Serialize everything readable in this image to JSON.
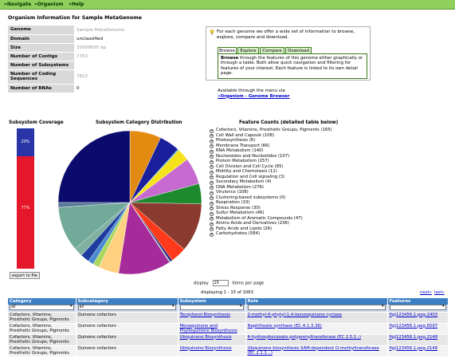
{
  "menu": [
    "»Navigate",
    "»Organism",
    "»Help"
  ],
  "page_title": "Organism Information for Sample MetaGenome",
  "info_table": [
    {
      "label": "Genome",
      "value": "Sample MetaGenome"
    },
    {
      "label": "Domain",
      "value": "unclassified"
    },
    {
      "label": "Size",
      "value": "20008695 bp"
    },
    {
      "label": "Number of Contigs",
      "value": "7763"
    },
    {
      "label": "Number of Subsystems",
      "value": ""
    },
    {
      "label": "Number of Coding Sequences",
      "value": "7822"
    },
    {
      "label": "Number of RNAs",
      "value": "0"
    }
  ],
  "info_box": {
    "intro": "For each genome we offer a wide set of information to browse, explore, compare and download.",
    "tabs": [
      "Browse",
      "Explore",
      "Compare",
      "Download"
    ],
    "active_tab": "Browse",
    "panel_bold": "Browse",
    "panel_text": " through the features of this genome either graphically or through a table. Both allow quick navigation and filtering for features of your interest. Each feature is linked to its own detail page.",
    "available_text": "Available through the menu via",
    "available_link": "»Organism - Genome Browser"
  },
  "coverage": {
    "title": "Subsystem Coverage",
    "covered_pct": 20,
    "covered_label": "20%",
    "uncovered_label": "77%",
    "colors": {
      "covered": "#2a36a8",
      "uncovered": "#e5172a"
    }
  },
  "export_button": "export to file",
  "distribution_title": "Subsystem Category Distribution",
  "feature_counts_title": "Feature Counts (detailed table below)",
  "chart_data": {
    "type": "pie",
    "title": "Subsystem Category Distribution",
    "slices": [
      {
        "label": "Cofactors, Vitamins, Prosthetic Groups, Pigments",
        "value": 165,
        "color": "#e38a11"
      },
      {
        "label": "Cell Wall and Capsule",
        "value": 108,
        "color": "#1a1f9c"
      },
      {
        "label": "Photosynthesis",
        "value": 6,
        "color": "#39b0c8"
      },
      {
        "label": "Membrane Transport",
        "value": 66,
        "color": "#f4e21a"
      },
      {
        "label": "RNA Metabolism",
        "value": 140,
        "color": "#c66ad0"
      },
      {
        "label": "Nucleosides and Nucleotides",
        "value": 107,
        "color": "#1d8a2e"
      },
      {
        "label": "Protein Metabolism",
        "value": 257,
        "color": "#8a3a2e"
      },
      {
        "label": "Cell Division and Cell Cycle",
        "value": 85,
        "color": "#ff3a1a"
      },
      {
        "label": "Motility and Chemotaxis",
        "value": 11,
        "color": "#15187a"
      },
      {
        "label": "Regulation and Cell signaling",
        "value": 3,
        "color": "#7a2a7a"
      },
      {
        "label": "Secondary Metabolism",
        "value": 4,
        "color": "#25a070"
      },
      {
        "label": "DNA Metabolism",
        "value": 276,
        "color": "#a52a9a"
      },
      {
        "label": "Virulence",
        "value": 108,
        "color": "#ffd080"
      },
      {
        "label": "Clustering-based subsystems",
        "value": 0,
        "color": "#3c9a3c"
      },
      {
        "label": "Respiration",
        "value": 33,
        "color": "#a8d860"
      },
      {
        "label": "Stress Response",
        "value": 30,
        "color": "#4a8ad0"
      },
      {
        "label": "Sulfur Metabolism",
        "value": 46,
        "color": "#1e3ca0"
      },
      {
        "label": "Metabolism of Aromatic Compounds",
        "value": 47,
        "color": "#7fb0a0"
      },
      {
        "label": "Amino Acids and Derivatives",
        "value": 236,
        "color": "#72aa9a"
      },
      {
        "label": "Fatty Acids and Lipids",
        "value": 26,
        "color": "#5a7a9a"
      },
      {
        "label": "Carbohydrates",
        "value": 584,
        "color": "#0b0b6e"
      }
    ]
  },
  "feature_counts": [
    "Cofactors, Vitamins, Prosthetic Groups, Pigments (165)",
    "Cell Wall and Capsule (108)",
    "Photosynthesis (6)",
    "Membrane Transport (66)",
    "RNA Metabolism (140)",
    "Nucleosides and Nucleotides (107)",
    "Protein Metabolism (257)",
    "Cell Division and Cell Cycle (85)",
    "Motility and Chemotaxis (11)",
    "Regulation and Cell signaling (3)",
    "Secondary Metabolism (4)",
    "DNA Metabolism (276)",
    "Virulence (108)",
    "Clustering-based subsystems (0)",
    "Respiration (33)",
    "Stress Response (30)",
    "Sulfur Metabolism (46)",
    "Metabolism of Aromatic Compounds (47)",
    "Amino Acids and Derivatives (236)",
    "Fatty Acids and Lipids (26)",
    "Carbohydrates (584)"
  ],
  "pagination": {
    "display_label": "display",
    "per_page_value": "15",
    "per_page_suffix": "items per page",
    "displaying": "displaying 1 - 15 of 1063",
    "next": "next»",
    "last": "last»"
  },
  "table": {
    "columns": [
      "Category",
      "Subcategory",
      "Subsystem",
      "Role",
      "Features"
    ],
    "filters": [
      "all",
      "all",
      "",
      "",
      ""
    ],
    "rows": [
      [
        "Cofactors, Vitamins, Prosthetic Groups, Pigments",
        "Quinone cofactors",
        "Tocopherol Biosynthesis",
        "2-methyl-6-phytyl-1,4-benzoquinone cyclase",
        "fig|123456.1.peg.2403"
      ],
      [
        "Cofactors, Vitamins, Prosthetic Groups, Pigments",
        "Quinone cofactors",
        "Menaquinone and Phylloquinone Biosynthesis",
        "Naphthoate synthase (EC 4.1.3.36)",
        "fig|123456.1.peg.6597"
      ],
      [
        "Cofactors, Vitamins, Prosthetic Groups, Pigments",
        "Quinone cofactors",
        "Ubiquinone Biosynthesis",
        "4-hydroxybenzoate polyprenyltransferase (EC 2.5.1.-)",
        "fig|123456.1.peg.2148"
      ],
      [
        "Cofactors, Vitamins, Prosthetic Groups, Pigments",
        "Quinone cofactors",
        "Ubiquinone Biosynthesis",
        "Ubiquinone biosynthesis SAM-dependent O-methyltransferase (EC 2.1.1...)",
        "fig|123456.1.peg.2148"
      ]
    ]
  }
}
